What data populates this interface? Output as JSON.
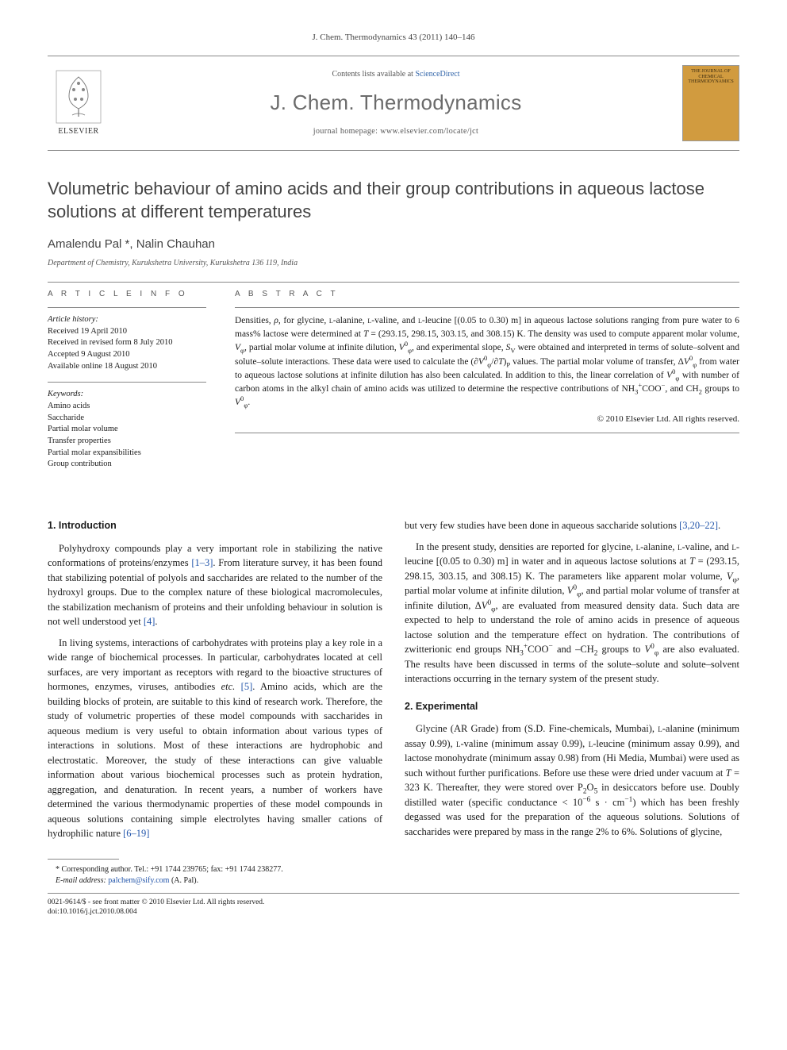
{
  "citation": "J. Chem. Thermodynamics 43 (2011) 140–146",
  "header": {
    "contents_prefix": "Contents lists available at ",
    "contents_link": "ScienceDirect",
    "journal": "J. Chem. Thermodynamics",
    "homepage_prefix": "journal homepage: ",
    "homepage": "www.elsevier.com/locate/jct",
    "publisher": "ELSEVIER",
    "cover_title": "THE JOURNAL OF CHEMICAL THERMODYNAMICS"
  },
  "title": "Volumetric behaviour of amino acids and their group contributions in aqueous lactose solutions at different temperatures",
  "authors": "Amalendu Pal *, Nalin Chauhan",
  "affiliation": "Department of Chemistry, Kurukshetra University, Kurukshetra 136 119, India",
  "info": {
    "label": "A R T I C L E   I N F O",
    "history_heading": "Article history:",
    "history": [
      "Received 19 April 2010",
      "Received in revised form 8 July 2010",
      "Accepted 9 August 2010",
      "Available online 18 August 2010"
    ],
    "keywords_heading": "Keywords:",
    "keywords": [
      "Amino acids",
      "Saccharide",
      "Partial molar volume",
      "Transfer properties",
      "Partial molar expansibilities",
      "Group contribution"
    ]
  },
  "abstract": {
    "label": "A B S T R A C T",
    "text_html": "Densities, <i>ρ</i>, for glycine, <span style='font-variant:small-caps'>l</span>-alanine, <span style='font-variant:small-caps'>l</span>-valine, and <span style='font-variant:small-caps'>l</span>-leucine [(0.05 to 0.30) m] in aqueous lactose solutions ranging from pure water to 6 mass% lactose were determined at <i>T</i> = (293.15, 298.15, 303.15, and 308.15) K. The density was used to compute apparent molar volume, <i>V</i><sub>φ</sub>, partial molar volume at infinite dilution, <i>V</i><sup>0</sup><sub>φ</sub>, and experimental slope, <i>S</i><sub>V</sub> were obtained and interpreted in terms of solute–solvent and solute–solute interactions. These data were used to calculate the (∂<i>V</i><sup>0</sup><sub>φ</sub>/∂<i>T</i>)<sub>P</sub> values. The partial molar volume of transfer, Δ<i>V</i><sup>0</sup><sub>φ</sub> from water to aqueous lactose solutions at infinite dilution has also been calculated. In addition to this, the linear correlation of <i>V</i><sup>0</sup><sub>φ</sub> with number of carbon atoms in the alkyl chain of amino acids was utilized to determine the respective contributions of NH<sub>3</sub><sup>+</sup>COO<sup>−</sup>, and CH<sub>2</sub> groups to <i>V</i><sup>0</sup><sub>φ</sub>.",
    "copyright": "© 2010 Elsevier Ltd. All rights reserved."
  },
  "section1": {
    "heading": "1. Introduction",
    "p1_html": "Polyhydroxy compounds play a very important role in stabilizing the native conformations of proteins/enzymes <span class='ref'>[1–3]</span>. From literature survey, it has been found that stabilizing potential of polyols and saccharides are related to the number of the hydroxyl groups. Due to the complex nature of these biological macromolecules, the stabilization mechanism of proteins and their unfolding behaviour in solution is not well understood yet <span class='ref'>[4]</span>.",
    "p2_html": "In living systems, interactions of carbohydrates with proteins play a key role in a wide range of biochemical processes. In particular, carbohydrates located at cell surfaces, are very important as receptors with regard to the bioactive structures of hormones, enzymes, viruses, antibodies <i>etc.</i> <span class='ref'>[5]</span>. Amino acids, which are the building blocks of protein, are suitable to this kind of research work. Therefore, the study of volumetric properties of these model compounds with saccharides in aqueous medium is very useful to obtain information about various types of interactions in solutions. Most of these interactions are hydrophobic and electrostatic. Moreover, the study of these interactions can give valuable information about various biochemical processes such as protein hydration, aggregation, and denaturation. In recent years, a number of workers have determined the various thermodynamic properties of these model compounds in aqueous solutions containing simple electrolytes having smaller cations of hydrophilic nature <span class='ref'>[6–19]</span>",
    "p3_html": "but very few studies have been done in aqueous saccharide solutions <span class='ref'>[3,20–22]</span>.",
    "p4_html": "In the present study, densities are reported for glycine, <span style='font-variant:small-caps'>l</span>-alanine, <span style='font-variant:small-caps'>l</span>-valine, and <span style='font-variant:small-caps'>l</span>-leucine [(0.05 to 0.30) m] in water and in aqueous lactose solutions at <i>T</i> = (293.15, 298.15, 303.15, and 308.15) K. The parameters like apparent molar volume, <i>V</i><sub>φ</sub>, partial molar volume at infinite dilution, <i>V</i><sup>0</sup><sub>φ</sub>, and partial molar volume of transfer at infinite dilution, Δ<i>V</i><sup>0</sup><sub>φ</sub>, are evaluated from measured density data. Such data are expected to help to understand the role of amino acids in presence of aqueous lactose solution and the temperature effect on hydration. The contributions of zwitterionic end groups NH<sub>3</sub><sup>+</sup>COO<sup>−</sup> and –CH<sub>2</sub> groups to <i>V</i><sup>0</sup><sub>φ</sub> are also evaluated. The results have been discussed in terms of the solute–solute and solute–solvent interactions occurring in the ternary system of the present study."
  },
  "section2": {
    "heading": "2. Experimental",
    "p1_html": "Glycine (AR Grade) from (S.D. Fine-chemicals, Mumbai), <span style='font-variant:small-caps'>l</span>-alanine (minimum assay 0.99), <span style='font-variant:small-caps'>l</span>-valine (minimum assay 0.99), <span style='font-variant:small-caps'>l</span>-leucine (minimum assay 0.99), and lactose monohydrate (minimum assay 0.98) from (Hi Media, Mumbai) were used as such without further purifications. Before use these were dried under vacuum at <i>T</i> = 323 K. Thereafter, they were stored over P<sub>2</sub>O<sub>5</sub> in desiccators before use. Doubly distilled water (specific conductance &lt; 10<sup>−6</sup> s · cm<sup>−1</sup>) which has been freshly degassed was used for the preparation of the aqueous solutions. Solutions of saccharides were prepared by mass in the range 2% to 6%. Solutions of glycine,"
  },
  "footnote": {
    "corresponding": "* Corresponding author. Tel.: +91 1744 239765; fax: +91 1744 238277.",
    "email_label": "E-mail address:",
    "email": "palchem@sify.com",
    "email_name": "(A. Pal)."
  },
  "footer": {
    "issn": "0021-9614/$ - see front matter © 2010 Elsevier Ltd. All rights reserved.",
    "doi": "doi:10.1016/j.jct.2010.08.004"
  },
  "colors": {
    "text": "#1a1a1a",
    "muted": "#555555",
    "journal_grey": "#6b6b6b",
    "link": "#2255aa",
    "cover_bg": "#d19b3f",
    "rule": "#888888"
  }
}
